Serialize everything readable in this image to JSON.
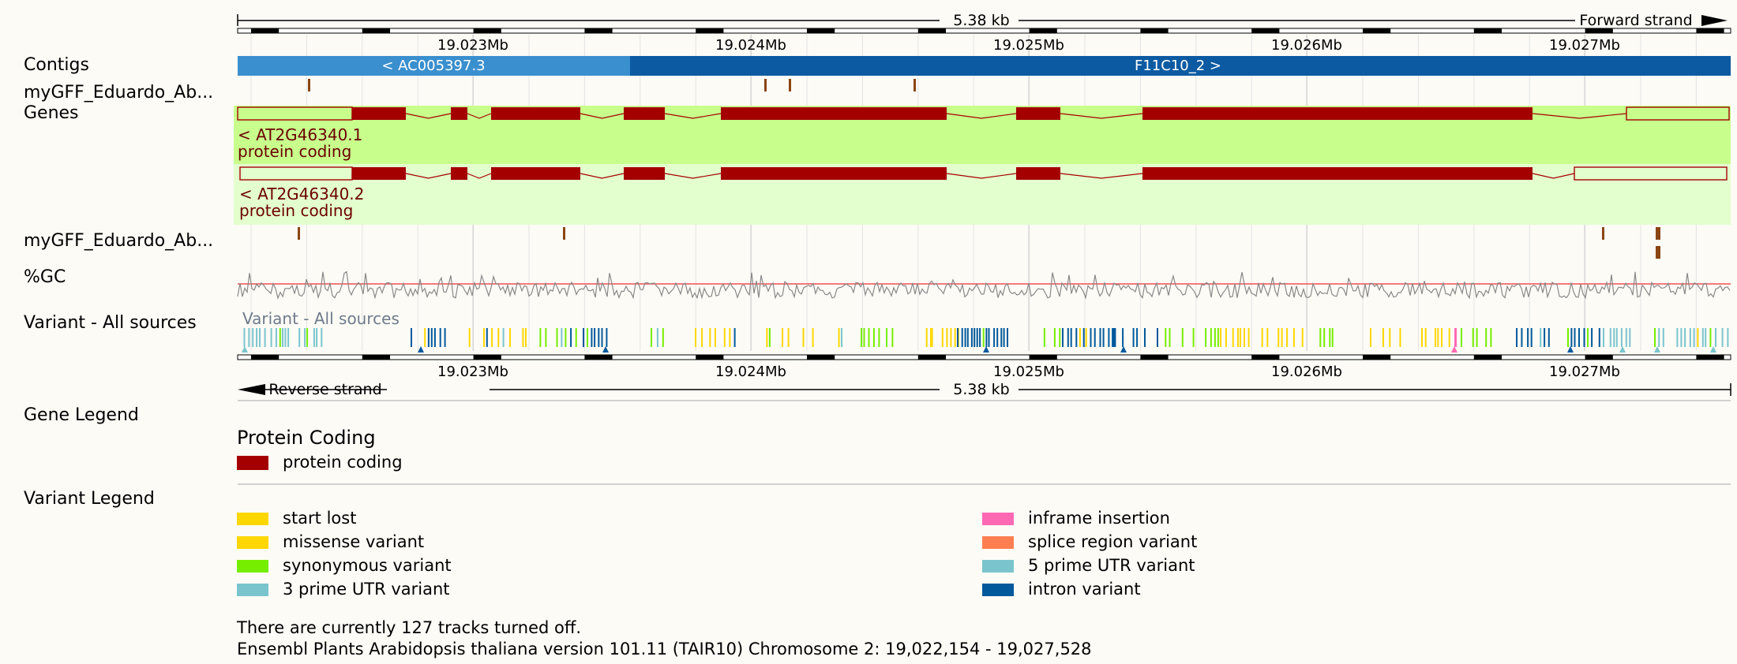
{
  "ruler": {
    "top_length": "5.38 kb",
    "top_strand": "Forward strand",
    "bottom_length": "5.38 kb",
    "bottom_strand": "Reverse strand",
    "positions": [
      "19.023Mb",
      "19.024Mb",
      "19.025Mb",
      "19.026Mb",
      "19.027Mb"
    ]
  },
  "tracks": {
    "contigs_label": "Contigs",
    "gff_label_1": "myGFF_Eduardo_Ab...",
    "genes_label": "Genes",
    "gff_label_2": "myGFF_Eduardo_Ab...",
    "gc_label": "%GC",
    "variant_label": "Variant - All sources",
    "variant_inner_label": "Variant - All sources"
  },
  "contigs": [
    {
      "name": "< AC005397.3",
      "color": "#3a8fce"
    },
    {
      "name": "F11C10_2 >",
      "color": "#0b5aa2"
    }
  ],
  "genes": [
    {
      "id": "< AT2G46340.1",
      "biotype": "protein coding",
      "bg": "#c8ff8c"
    },
    {
      "id": "< AT2G46340.2",
      "biotype": "protein coding",
      "bg": "#e4ffce"
    }
  ],
  "gene_legend": {
    "title": "Gene Legend",
    "heading": "Protein Coding",
    "items": [
      {
        "label": "protein coding",
        "color": "#a40000"
      }
    ]
  },
  "variant_legend": {
    "title": "Variant Legend",
    "items": [
      {
        "label": "start lost",
        "color": "#ffd700"
      },
      {
        "label": "missense variant",
        "color": "#ffd700"
      },
      {
        "label": "synonymous variant",
        "color": "#76ee00"
      },
      {
        "label": "3 prime UTR variant",
        "color": "#7ac5cd"
      },
      {
        "label": "inframe insertion",
        "color": "#ff69b4"
      },
      {
        "label": "splice region variant",
        "color": "#ff7f50"
      },
      {
        "label": "5 prime UTR variant",
        "color": "#7ac5cd"
      },
      {
        "label": "intron variant",
        "color": "#02599c"
      }
    ]
  },
  "footer": {
    "tracks_off": "There are currently 127 tracks turned off.",
    "assembly": "Ensembl Plants Arabidopsis thaliana version 101.11 (TAIR10) Chromosome 2: 19,022,154 - 19,027,528"
  }
}
